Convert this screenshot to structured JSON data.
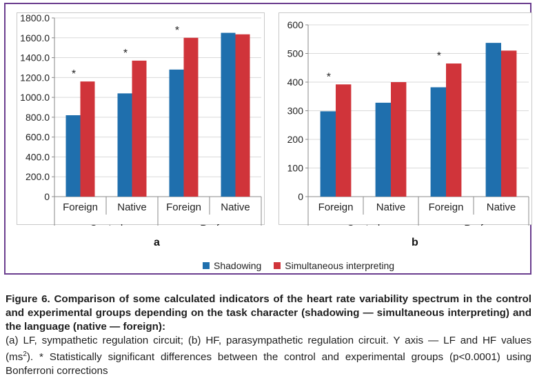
{
  "panel_a": {
    "letter": "a"
  },
  "panel_b": {
    "letter": "b"
  },
  "legend": {
    "items": [
      {
        "label": "Shadowing",
        "color": "#1f6fad"
      },
      {
        "label": "Simultaneous interpreting",
        "color": "#d0343a"
      }
    ]
  },
  "caption": {
    "title": "Figure 6. Comparison of some calculated indicators of the heart rate variability spectrum in the control and experimental groups depending on the task character (shadowing — simultaneous interpreting) and the language (native — foreign):",
    "body_prefix": "(a) LF, sympathetic regulation circuit; (b) HF, parasympathetic regulation circuit. Y axis — LF and HF values (ms",
    "body_sup": "2",
    "body_suffix": "). * Statistically significant differences between the control and experimental groups (p<0.0001) using Bonferroni corrections"
  },
  "chart_data": [
    {
      "type": "bar",
      "panel": "a",
      "categories": [
        "Foreign",
        "Native",
        "Foreign",
        "Native"
      ],
      "groups": [
        {
          "label": "Control",
          "categories": [
            0,
            1
          ]
        },
        {
          "label": "Prof",
          "categories": [
            2,
            3
          ]
        }
      ],
      "series": [
        {
          "name": "Shadowing",
          "color": "#1f6fad",
          "values": [
            820,
            1040,
            1280,
            1650
          ]
        },
        {
          "name": "Simultaneous interpreting",
          "color": "#d0343a",
          "values": [
            1160,
            1370,
            1600,
            1635
          ]
        }
      ],
      "significance_markers": [
        {
          "category": 0,
          "text": "*"
        },
        {
          "category": 1,
          "text": "*"
        },
        {
          "category": 2,
          "text": "*"
        }
      ],
      "ylim": [
        0,
        1800
      ],
      "yticks": [
        0,
        200,
        400,
        600,
        800,
        1000,
        1200,
        1400,
        1600,
        1800
      ],
      "ytick_labels": [
        "0",
        "200.0",
        "400.0",
        "600.0",
        "800.0",
        "1000.0",
        "1200.0",
        "1400.0",
        "1600.0",
        "1800.0"
      ],
      "grid": true
    },
    {
      "type": "bar",
      "panel": "b",
      "categories": [
        "Foreign",
        "Native",
        "Foreign",
        "Native"
      ],
      "groups": [
        {
          "label": "Control",
          "categories": [
            0,
            1
          ]
        },
        {
          "label": "Prof",
          "categories": [
            2,
            3
          ]
        }
      ],
      "series": [
        {
          "name": "Shadowing",
          "color": "#1f6fad",
          "values": [
            298,
            328,
            382,
            537
          ]
        },
        {
          "name": "Simultaneous interpreting",
          "color": "#d0343a",
          "values": [
            392,
            400,
            465,
            510
          ]
        }
      ],
      "significance_markers": [
        {
          "category": 0,
          "text": "*"
        },
        {
          "category": 2,
          "text": "*"
        }
      ],
      "ylim": [
        0,
        600
      ],
      "yticks": [
        0,
        100,
        200,
        300,
        400,
        500,
        600
      ],
      "ytick_labels": [
        "0",
        "100",
        "200",
        "300",
        "400",
        "500",
        "600"
      ],
      "grid": true
    }
  ]
}
